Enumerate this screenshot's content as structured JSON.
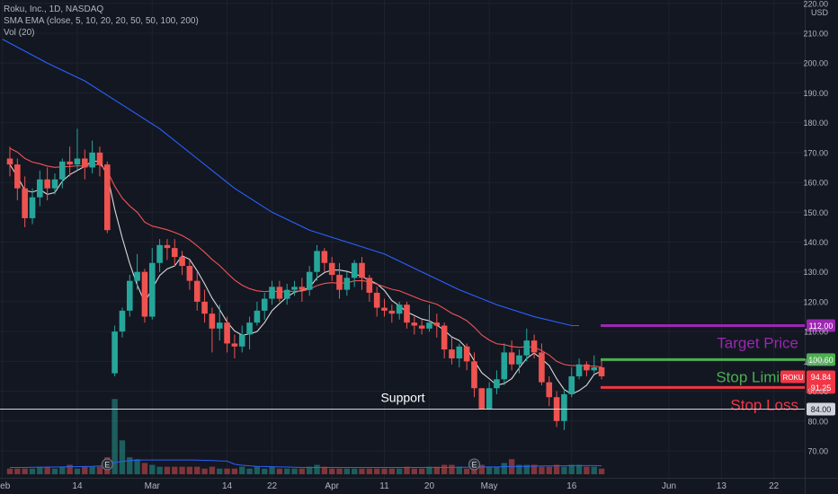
{
  "legend": {
    "symbol_line": "Roku, Inc., 1D, NASDAQ",
    "ma_line": "SMA EMA (close, 5, 10, 20, 20, 50, 50, 100, 200)",
    "vol_line": "Vol (20)"
  },
  "chart_data": {
    "type": "candlestick",
    "price_axis": {
      "currency": "USD",
      "ticks": [
        "220.00",
        "210.00",
        "200.00",
        "190.00",
        "180.00",
        "170.00",
        "160.00",
        "150.00",
        "140.00",
        "130.00",
        "120.00",
        "110.00",
        "100.00",
        "90.00",
        "80.00",
        "70.00"
      ],
      "ylim": [
        64,
        220
      ]
    },
    "time_axis": {
      "ticks": [
        {
          "label": "Feb",
          "i": -1
        },
        {
          "label": "14",
          "i": 9
        },
        {
          "label": "Mar",
          "i": 19
        },
        {
          "label": "14",
          "i": 29
        },
        {
          "label": "22",
          "i": 35
        },
        {
          "label": "Apr",
          "i": 43
        },
        {
          "label": "11",
          "i": 50
        },
        {
          "label": "20",
          "i": 56
        },
        {
          "label": "May",
          "i": 64
        },
        {
          "label": "16",
          "i": 75
        },
        {
          "label": "Jun",
          "i": 88
        },
        {
          "label": "13",
          "i": 95
        },
        {
          "label": "22",
          "i": 102
        }
      ]
    },
    "candles": [
      [
        168,
        166,
        172,
        162
      ],
      [
        166,
        158,
        168,
        154
      ],
      [
        158,
        148,
        162,
        145
      ],
      [
        148,
        155,
        158,
        146
      ],
      [
        155,
        161,
        164,
        152
      ],
      [
        161,
        158,
        165,
        154
      ],
      [
        158,
        161,
        163,
        156
      ],
      [
        161,
        167,
        168,
        158
      ],
      [
        167,
        166,
        172,
        162
      ],
      [
        166,
        168,
        178,
        164
      ],
      [
        168,
        165,
        171,
        161
      ],
      [
        165,
        170,
        174,
        163
      ],
      [
        170,
        166,
        172,
        162
      ],
      [
        166,
        144,
        167,
        143
      ],
      [
        96,
        110,
        112,
        95
      ],
      [
        110,
        117,
        118,
        108
      ],
      [
        117,
        127,
        129,
        115
      ],
      [
        127,
        130,
        136,
        124
      ],
      [
        130,
        115,
        131,
        113
      ],
      [
        115,
        133,
        138,
        114
      ],
      [
        133,
        139,
        141,
        130
      ],
      [
        139,
        138,
        141,
        134
      ],
      [
        138,
        135,
        141,
        132
      ],
      [
        135,
        132,
        137,
        129
      ],
      [
        132,
        127,
        134,
        124
      ],
      [
        127,
        120,
        130,
        117
      ],
      [
        120,
        116,
        124,
        113
      ],
      [
        116,
        111,
        118,
        103
      ],
      [
        111,
        113,
        119,
        107
      ],
      [
        113,
        106,
        115,
        103
      ],
      [
        106,
        105,
        109,
        101
      ],
      [
        105,
        109,
        112,
        103
      ],
      [
        109,
        113,
        115,
        104
      ],
      [
        113,
        117,
        120,
        112
      ],
      [
        117,
        121,
        123,
        114
      ],
      [
        121,
        125,
        127,
        119
      ],
      [
        125,
        121,
        127,
        120
      ],
      [
        121,
        124,
        126,
        119
      ],
      [
        124,
        125,
        127,
        122
      ],
      [
        125,
        124,
        128,
        120
      ],
      [
        124,
        130,
        132,
        122
      ],
      [
        130,
        137,
        139,
        127
      ],
      [
        137,
        133,
        138,
        130
      ],
      [
        133,
        129,
        135,
        127
      ],
      [
        129,
        124,
        133,
        121
      ],
      [
        124,
        128,
        130,
        122
      ],
      [
        128,
        133,
        134,
        125
      ],
      [
        133,
        128,
        135,
        124
      ],
      [
        128,
        123,
        129,
        120
      ],
      [
        123,
        118,
        125,
        115
      ],
      [
        118,
        117,
        121,
        115
      ],
      [
        117,
        116,
        119,
        113
      ],
      [
        116,
        119,
        120,
        114
      ],
      [
        119,
        113,
        120,
        111
      ],
      [
        113,
        112,
        115,
        109
      ],
      [
        112,
        111,
        114,
        109
      ],
      [
        111,
        113,
        119,
        110
      ],
      [
        113,
        112,
        116,
        108
      ],
      [
        112,
        104,
        113,
        101
      ],
      [
        104,
        101,
        108,
        99
      ],
      [
        101,
        105,
        106,
        98
      ],
      [
        105,
        100,
        106,
        97
      ],
      [
        100,
        91,
        103,
        88
      ],
      [
        91,
        84,
        91,
        84
      ],
      [
        84,
        91,
        93,
        84
      ],
      [
        91,
        94,
        97,
        89
      ],
      [
        94,
        103,
        106,
        92
      ],
      [
        103,
        99,
        107,
        97
      ],
      [
        99,
        102,
        104,
        96
      ],
      [
        102,
        107,
        111,
        100
      ],
      [
        107,
        103,
        109,
        101
      ],
      [
        103,
        93,
        106,
        92
      ],
      [
        93,
        88,
        95,
        85
      ],
      [
        88,
        80,
        90,
        78
      ],
      [
        80,
        89,
        91,
        77
      ],
      [
        89,
        95,
        98,
        88
      ],
      [
        95,
        99,
        101,
        94
      ],
      [
        99,
        97,
        100,
        95
      ],
      [
        97,
        98,
        102,
        96
      ],
      [
        98,
        95,
        101,
        94
      ]
    ],
    "volume_scale": [
      0,
      42
    ],
    "volume": [
      3,
      3,
      3,
      3,
      4,
      4,
      3,
      4,
      5,
      3,
      4,
      4,
      4,
      9,
      40,
      18,
      9,
      8,
      6,
      5,
      4,
      4,
      4,
      4,
      4,
      4,
      3,
      4,
      3,
      3,
      3,
      4,
      3,
      4,
      3,
      4,
      3,
      3,
      3,
      3,
      4,
      5,
      4,
      3,
      3,
      3,
      3,
      3,
      3,
      3,
      3,
      3,
      3,
      4,
      3,
      3,
      4,
      4,
      5,
      5,
      4,
      3,
      6,
      5,
      4,
      4,
      6,
      8,
      5,
      5,
      5,
      4,
      4,
      5,
      4,
      5,
      5,
      4,
      4,
      3
    ],
    "volume_ma": [
      3.6,
      3.6,
      3.6,
      3.7,
      3.7,
      3.8,
      3.8,
      3.9,
      4,
      4,
      4.1,
      4.2,
      4.4,
      4.8,
      6.2,
      6.8,
      7.2,
      7.5,
      7.6,
      7.6,
      7.6,
      7.6,
      7.6,
      7.6,
      7.6,
      7.5,
      7.4,
      7.3,
      7.1,
      7,
      5.3,
      4.8,
      4.5,
      4.2,
      4.1,
      4,
      3.9,
      3.8,
      3.7,
      3.6,
      3.6,
      3.6,
      3.6,
      3.6,
      3.6,
      3.6,
      3.6,
      3.6,
      3.6,
      3.6,
      3.6,
      3.6,
      3.6,
      3.6,
      3.6,
      3.6,
      3.6,
      3.6,
      3.6,
      3.6,
      3.7,
      3.7,
      3.8,
      3.8,
      3.9,
      3.9,
      4,
      4.1,
      4.1,
      4.2,
      4.3,
      4.4,
      4.4,
      4.5,
      4.5,
      4.6,
      4.6,
      4.6,
      4.6,
      4.5
    ],
    "earnings_marks": [
      13,
      62
    ],
    "moving_averages": [
      {
        "color": "#d9d9d9",
        "period": 5,
        "type": "sma"
      },
      {
        "color": "#f05454",
        "period": 20,
        "type": "ema"
      },
      {
        "color": "#2962ff",
        "type": "curve",
        "points": [
          [
            -1,
            208
          ],
          [
            5,
            200
          ],
          [
            10,
            194
          ],
          [
            15,
            186
          ],
          [
            20,
            178
          ],
          [
            25,
            168
          ],
          [
            30,
            158
          ],
          [
            35,
            150
          ],
          [
            40,
            144
          ],
          [
            45,
            140
          ],
          [
            50,
            136
          ],
          [
            55,
            130
          ],
          [
            60,
            124
          ],
          [
            65,
            119
          ],
          [
            70,
            115
          ],
          [
            75,
            112
          ],
          [
            76,
            112
          ]
        ]
      }
    ],
    "levels": [
      {
        "price": 112,
        "color": "#9c27b0",
        "label": "112.00",
        "text": "Target Price"
      },
      {
        "price": 100.6,
        "color": "#4caf50",
        "label": "100.60",
        "text": "Stop Limit E"
      },
      {
        "price": 91.25,
        "color": "#f23645",
        "label": "91.25",
        "text": "Stop Loss"
      },
      {
        "price": 84,
        "color": "#d1d4dc",
        "label": "84.00",
        "text": "Support"
      }
    ],
    "last_price": {
      "symbol": "ROKU",
      "price": 94.84,
      "label": "94.84"
    },
    "colors": {
      "up": "#26a69a",
      "down": "#ef5350",
      "background": "#131722",
      "grid": "#1e222d",
      "text": "#b2b5be"
    }
  }
}
